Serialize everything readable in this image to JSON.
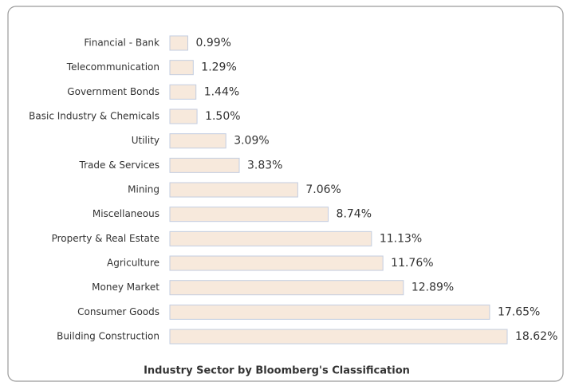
{
  "chart_data": {
    "type": "barh",
    "title": "Industry Sector by Bloomberg's Classification",
    "categories": [
      "Financial - Bank",
      "Telecommunication",
      "Government Bonds",
      "Basic Industry & Chemicals",
      "Utility",
      "Trade & Services",
      "Mining",
      "Miscellaneous",
      "Property & Real Estate",
      "Agriculture",
      "Money Market",
      "Consumer Goods",
      "Building Construction"
    ],
    "values": [
      0.99,
      1.29,
      1.44,
      1.5,
      3.09,
      3.83,
      7.06,
      8.74,
      11.13,
      11.76,
      12.89,
      17.65,
      18.62
    ],
    "value_labels": [
      "0.99%",
      "1.29%",
      "1.44%",
      "1.50%",
      "3.09%",
      "3.83%",
      "7.06%",
      "8.74%",
      "11.13%",
      "11.76%",
      "12.89%",
      "17.65%",
      "18.62%"
    ],
    "color": "#f7e9dc"
  }
}
